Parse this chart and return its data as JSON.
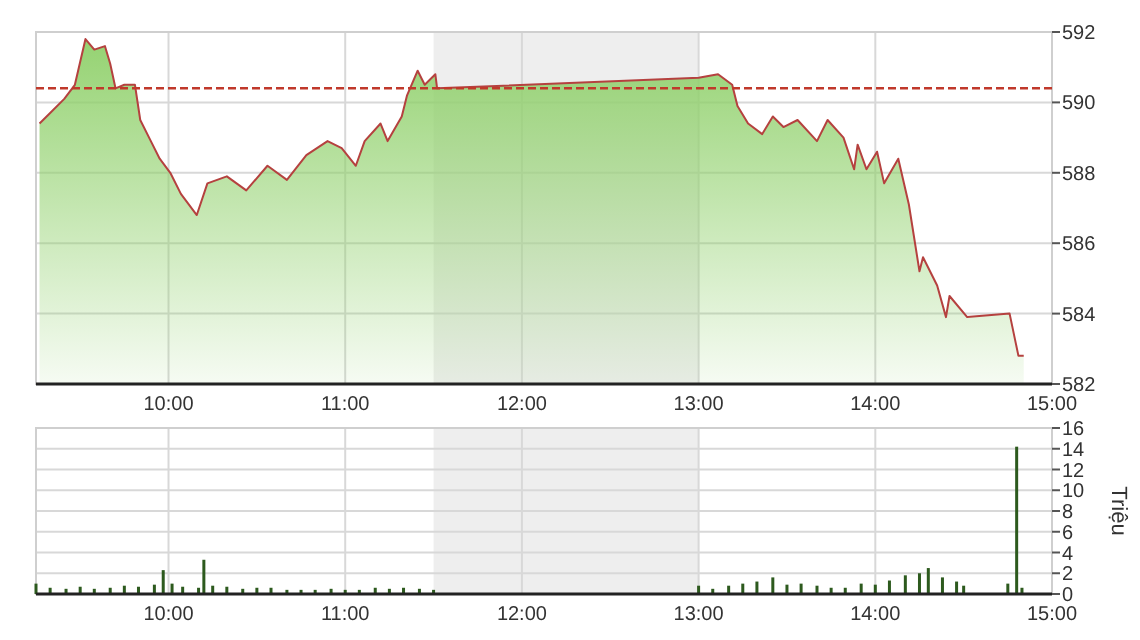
{
  "chart_data": [
    {
      "type": "area",
      "xlim": [
        9.25,
        15
      ],
      "xticks": [
        {
          "value": 10,
          "label": "10:00"
        },
        {
          "value": 11,
          "label": "11:00"
        },
        {
          "value": 12,
          "label": "12:00"
        },
        {
          "value": 13,
          "label": "13:00"
        },
        {
          "value": 14,
          "label": "14:00"
        },
        {
          "value": 15,
          "label": "15:00"
        }
      ],
      "ylim": [
        582,
        592
      ],
      "yticks": [
        582,
        584,
        586,
        588,
        590,
        592
      ],
      "grid": true,
      "bands": [
        {
          "axis": "x",
          "from": 11.5,
          "to": 13,
          "color": "#eeeeee"
        }
      ],
      "ref_lines": [
        {
          "axis": "y",
          "value": 590.4,
          "color": "#c0392b",
          "line_style": "dashed"
        }
      ],
      "series": [
        {
          "color": "#8fd06a",
          "x": [
            9.27,
            9.33,
            9.41,
            9.47,
            9.53,
            9.58,
            9.64,
            9.67,
            9.7,
            9.75,
            9.81,
            9.84,
            9.9,
            9.95,
            10.01,
            10.07,
            10.16,
            10.22,
            10.33,
            10.44,
            10.56,
            10.67,
            10.78,
            10.9,
            10.98,
            11.06,
            11.11,
            11.2,
            11.24,
            11.32,
            11.35,
            11.41,
            11.45,
            11.51,
            11.52,
            13.0,
            13.11,
            13.19,
            13.22,
            13.28,
            13.36,
            13.42,
            13.48,
            13.56,
            13.67,
            13.73,
            13.82,
            13.88,
            13.9,
            13.95,
            14.01,
            14.05,
            14.13,
            14.19,
            14.25,
            14.27,
            14.35,
            14.4,
            14.42,
            14.52,
            14.76,
            14.81,
            14.84
          ],
          "values": [
            589.4,
            589.7,
            590.1,
            590.5,
            591.8,
            591.5,
            591.6,
            591.1,
            590.4,
            590.5,
            590.5,
            589.5,
            588.9,
            588.4,
            588.0,
            587.4,
            586.8,
            587.7,
            587.9,
            587.5,
            588.2,
            587.8,
            588.5,
            588.9,
            588.7,
            588.2,
            588.9,
            589.4,
            588.9,
            589.6,
            590.2,
            590.9,
            590.5,
            590.8,
            590.4,
            590.7,
            590.8,
            590.5,
            589.9,
            589.4,
            589.1,
            589.6,
            589.3,
            589.5,
            588.9,
            589.5,
            589.0,
            588.1,
            588.8,
            588.1,
            588.6,
            587.7,
            588.4,
            587.1,
            585.2,
            585.6,
            584.8,
            583.9,
            584.5,
            583.9,
            584.0,
            582.8,
            582.8
          ]
        }
      ]
    },
    {
      "type": "bar",
      "xlim": [
        9.25,
        15
      ],
      "xticks": [
        {
          "value": 10,
          "label": "10:00"
        },
        {
          "value": 11,
          "label": "11:00"
        },
        {
          "value": 12,
          "label": "12:00"
        },
        {
          "value": 13,
          "label": "13:00"
        },
        {
          "value": 14,
          "label": "14:00"
        },
        {
          "value": 15,
          "label": "15:00"
        }
      ],
      "ylim": [
        0,
        16
      ],
      "yticks": [
        0,
        2,
        4,
        6,
        8,
        10,
        12,
        14,
        16
      ],
      "ylabel": "Triệu",
      "grid": true,
      "bands": [
        {
          "axis": "x",
          "from": 11.5,
          "to": 13,
          "color": "#eeeeee"
        }
      ],
      "series": [
        {
          "color": "#2d5a1e",
          "x": [
            9.25,
            9.33,
            9.42,
            9.5,
            9.58,
            9.67,
            9.75,
            9.83,
            9.92,
            9.97,
            10.02,
            10.08,
            10.17,
            10.2,
            10.25,
            10.33,
            10.42,
            10.5,
            10.58,
            10.67,
            10.75,
            10.83,
            10.92,
            11.0,
            11.08,
            11.17,
            11.25,
            11.33,
            11.42,
            11.5,
            13.0,
            13.08,
            13.17,
            13.25,
            13.33,
            13.42,
            13.5,
            13.58,
            13.67,
            13.75,
            13.83,
            13.92,
            14.0,
            14.08,
            14.17,
            14.25,
            14.3,
            14.38,
            14.46,
            14.5,
            14.75,
            14.8,
            14.83
          ],
          "values": [
            1.0,
            0.6,
            0.5,
            0.7,
            0.5,
            0.6,
            0.8,
            0.7,
            0.9,
            2.3,
            1.0,
            0.7,
            0.6,
            3.3,
            0.8,
            0.7,
            0.5,
            0.6,
            0.6,
            0.4,
            0.4,
            0.4,
            0.5,
            0.4,
            0.4,
            0.6,
            0.5,
            0.6,
            0.5,
            0.4,
            0.8,
            0.5,
            0.8,
            1.0,
            1.2,
            1.6,
            0.9,
            1.0,
            0.8,
            0.6,
            0.6,
            1.0,
            0.9,
            1.3,
            1.8,
            2.0,
            2.5,
            1.6,
            1.2,
            0.8,
            1.0,
            14.2,
            0.6
          ]
        }
      ]
    }
  ]
}
